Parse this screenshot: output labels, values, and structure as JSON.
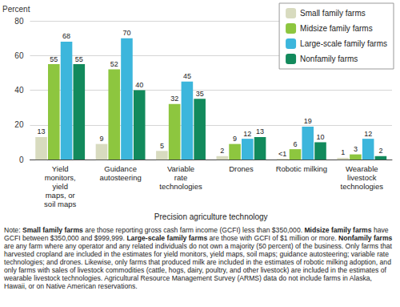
{
  "chart_data": {
    "type": "bar",
    "y_axis_label": "Percent",
    "x_axis_label": "Precision agriculture technology",
    "categories": [
      "Yield\nmonitors,\nyield\nmaps, or\nsoil maps",
      "Guidance\nautosteering",
      "Variable\nrate\ntechnologies",
      "Drones",
      "Robotic milking",
      "Wearable\nlivestock\ntechnologies"
    ],
    "series": [
      {
        "name": "Small family farms",
        "color": "#d8dbbf",
        "values": [
          13,
          9,
          5,
          2,
          0.5,
          1
        ],
        "value_labels": [
          "13",
          "9",
          "5",
          "2",
          "<1",
          "1"
        ]
      },
      {
        "name": "Midsize family farms",
        "color": "#8dc63f",
        "values": [
          55,
          52,
          32,
          9,
          6,
          3
        ]
      },
      {
        "name": "Large-scale family farms",
        "color": "#3cb6dc",
        "values": [
          68,
          70,
          45,
          12,
          19,
          12
        ]
      },
      {
        "name": "Nonfamily farms",
        "color": "#128a5c",
        "values": [
          55,
          40,
          35,
          13,
          10,
          2
        ]
      }
    ],
    "ylim": [
      0,
      80
    ],
    "yticks": [
      0,
      20,
      40,
      60,
      80
    ],
    "grid": true,
    "legend": "top-right",
    "data_labels": true,
    "note": [
      {
        "text": "Note: "
      },
      {
        "text": "Small family farms",
        "bold": true
      },
      {
        "text": " are those reporting gross cash farm income (GCFI) less than $350,000. "
      },
      {
        "text": "Midsize family farms",
        "bold": true
      },
      {
        "text": " have GCFI between $350,000 and $999,999. "
      },
      {
        "text": "Large-scale family farms",
        "bold": true
      },
      {
        "text": " are those with GCFI of $1 million or more. "
      },
      {
        "text": "Nonfamily farms",
        "bold": true
      },
      {
        "text": " are any farm where any operator and any related individuals do not own a majority (50 percent) of the business. Only farms that harvested cropland are included in the estimates for yield monitors, yield maps, soil maps; guidance autosteering; variable rate technologies; and drones. Likewise, only farms that produced milk are included in the estimates of robotic milking adoption, and only farms with sales of livestock commodities (cattle, hogs, dairy, poultry, and other livestock) are included in the estimates of wearable livestock technologies. Agricultural Resource Management Survey (ARMS) data do not include farms in Alaska, Hawaii, or on Native American reservations."
      }
    ]
  }
}
